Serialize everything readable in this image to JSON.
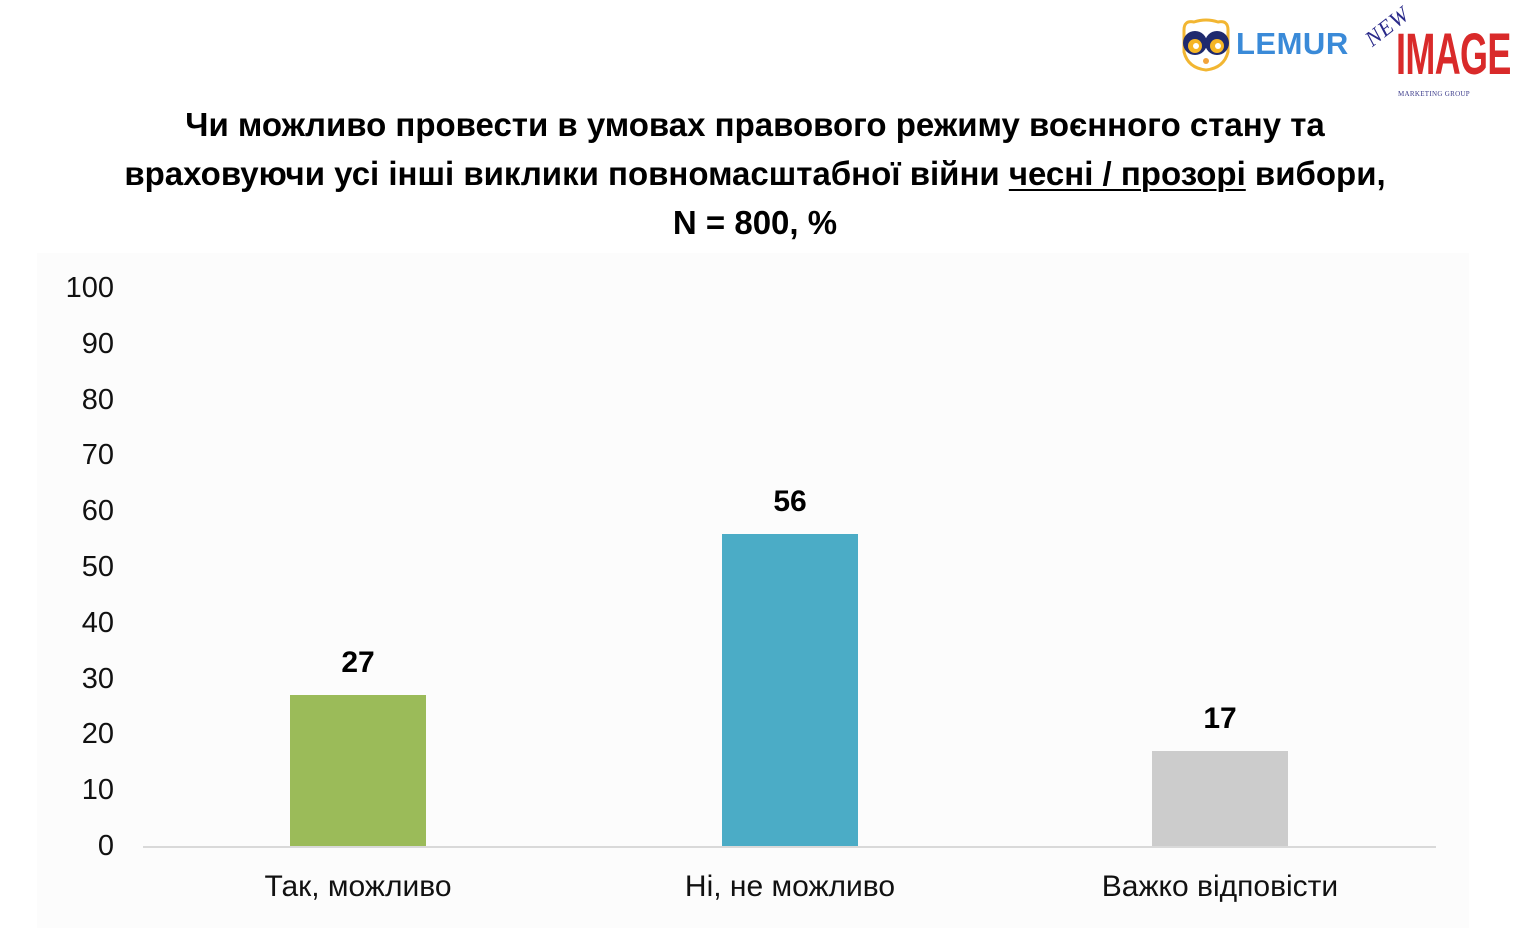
{
  "logos": {
    "lemur": {
      "text": "LEMUR",
      "icon": "lemur-face-icon",
      "color": "#3a8ad8"
    },
    "new_image": {
      "new": "NEW",
      "image": "IMAGE",
      "sub": "MARKETING GROUP",
      "color": "#d92a2a"
    }
  },
  "title": {
    "line1": "Чи можливо провести в умовах правового режиму воєнного стану та",
    "line2_pre": "враховуючи усі інші виклики повномасштабної війни ",
    "line2_underlined": "чесні / прозорі",
    "line2_post": " вибори,",
    "line3": "N = 800, %"
  },
  "chart_data": {
    "type": "bar",
    "title": "Чи можливо провести в умовах правового режиму воєнного стану та враховуючи усі інші виклики повномасштабної війни чесні / прозорі вибори, N = 800, %",
    "categories": [
      "Так, можливо",
      "Ні, не можливо",
      "Важко відповісти"
    ],
    "values": [
      27,
      56,
      17
    ],
    "colors": [
      "#9bbb59",
      "#4bacc6",
      "#cccccc"
    ],
    "xlabel": "",
    "ylabel": "",
    "ylim": [
      0,
      100
    ],
    "yticks": [
      0,
      10,
      20,
      30,
      40,
      50,
      60,
      70,
      80,
      90,
      100
    ],
    "grid": false,
    "legend": "none",
    "data_labels": true
  }
}
